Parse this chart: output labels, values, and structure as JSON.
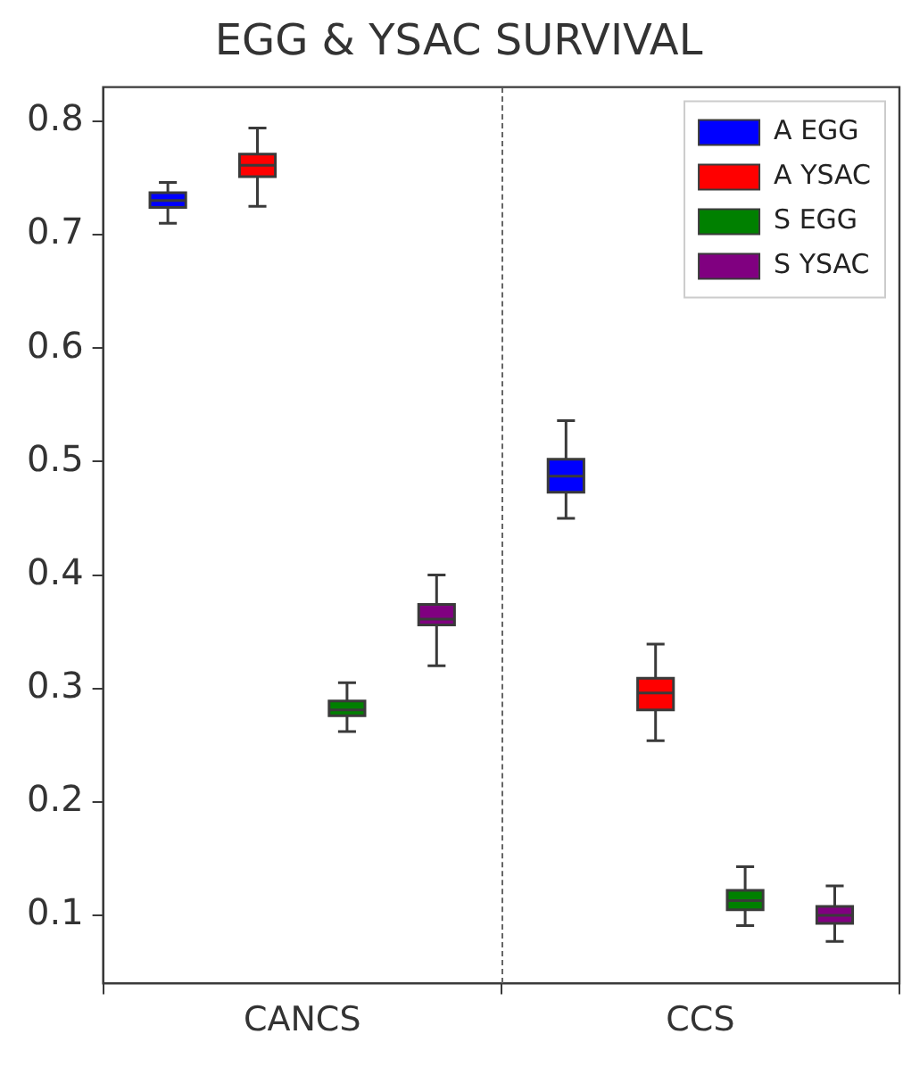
{
  "chart_data": {
    "type": "box",
    "title": "EGG & YSAC SURVIVAL",
    "categories": [
      "CANCS",
      "CCS"
    ],
    "ylim": [
      0.04,
      0.83
    ],
    "yticks": [
      0.1,
      0.2,
      0.3,
      0.4,
      0.5,
      0.6,
      0.7,
      0.8
    ],
    "legend": "top right",
    "series": [
      {
        "name": "A EGG",
        "color": "#0000ff",
        "boxes": [
          {
            "low": 0.71,
            "q1": 0.724,
            "median": 0.73,
            "q3": 0.737,
            "high": 0.746
          },
          {
            "low": 0.45,
            "q1": 0.473,
            "median": 0.487,
            "q3": 0.502,
            "high": 0.536
          }
        ]
      },
      {
        "name": "A YSAC",
        "color": "#ff0000",
        "boxes": [
          {
            "low": 0.725,
            "q1": 0.751,
            "median": 0.761,
            "q3": 0.771,
            "high": 0.794
          },
          {
            "low": 0.254,
            "q1": 0.281,
            "median": 0.296,
            "q3": 0.309,
            "high": 0.339
          }
        ]
      },
      {
        "name": "S EGG",
        "color": "#008000",
        "boxes": [
          {
            "low": 0.262,
            "q1": 0.276,
            "median": 0.281,
            "q3": 0.289,
            "high": 0.305
          },
          {
            "low": 0.091,
            "q1": 0.105,
            "median": 0.113,
            "q3": 0.122,
            "high": 0.143
          }
        ]
      },
      {
        "name": "S YSAC",
        "color": "#800080",
        "boxes": [
          {
            "low": 0.32,
            "q1": 0.356,
            "median": 0.361,
            "q3": 0.374,
            "high": 0.4
          },
          {
            "low": 0.077,
            "q1": 0.093,
            "median": 0.1,
            "q3": 0.108,
            "high": 0.126
          }
        ]
      }
    ]
  }
}
